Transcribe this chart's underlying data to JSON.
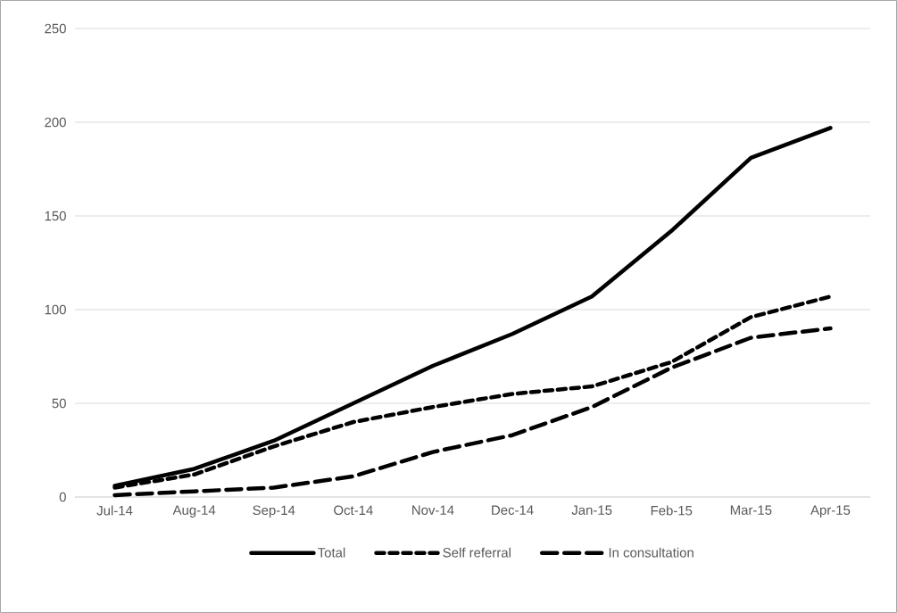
{
  "chart_data": {
    "type": "line",
    "categories": [
      "Jul-14",
      "Aug-14",
      "Sep-14",
      "Oct-14",
      "Nov-14",
      "Dec-14",
      "Jan-15",
      "Feb-15",
      "Mar-15",
      "Apr-15"
    ],
    "series": [
      {
        "name": "Total",
        "color": "#000000",
        "line_style": "solid",
        "values": [
          6,
          15,
          30,
          50,
          70,
          87,
          107,
          142,
          181,
          197
        ]
      },
      {
        "name": "Self referral",
        "color": "#000000",
        "line_style": "dashed",
        "values": [
          5,
          12,
          27,
          40,
          48,
          55,
          59,
          72,
          96,
          107
        ]
      },
      {
        "name": "In consultation",
        "color": "#000000",
        "line_style": "dashed",
        "values": [
          1,
          3,
          5,
          11,
          24,
          33,
          48,
          69,
          85,
          90
        ]
      }
    ],
    "ylim": [
      0,
      250
    ],
    "yticks": [
      0,
      50,
      100,
      150,
      200,
      250
    ],
    "grid": "y",
    "legend": "bottom",
    "marker": "none"
  }
}
